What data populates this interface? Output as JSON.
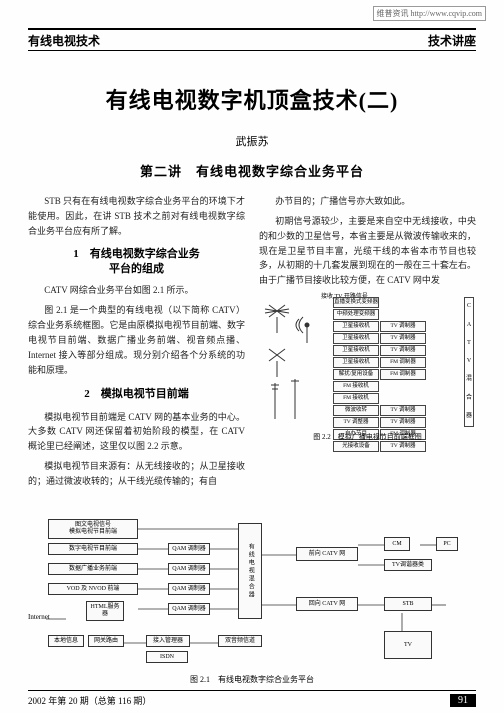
{
  "watermark": "维普资讯 http://www.cqvip.com",
  "header": {
    "left": "有线电视技术",
    "right": "技术讲座"
  },
  "title": "有线电视数字机顶盒技术(二)",
  "author": "武振苏",
  "subtitle": "第二讲　有线电视数字综合业务平台",
  "left_col": {
    "p1": "STB 只有在有线电视数字综合业务平台的环境下才能使用。因此，在讲 STB 技术之前对有线电视数字综合业务平台应有所了解。",
    "h1_line1": "1　有线电视数字综合业务",
    "h1_line2": "平台的组成",
    "p2": "CATV 网综合业务平台如图 2.1 所示。",
    "p3": "图 2.1 是一个典型的有线电视（以下简称 CATV）综合业务系统框图。它是由原模拟电视节目前端、数字电视节目前端、数据广播业务前端、视音频点播、Internet 接入等部分组成。现分别介绍各个分系统的功能和原理。",
    "h2": "2　模拟电视节目前端",
    "p4": "模拟电视节目前端是 CATV 网的基本业务的中心。大多数 CATV 网还保留着初始阶段的模型，在 CATV 概论里已经阐述，这里仅以图 2.2 示意。",
    "p5": "模拟电视节目来源有：从无线接收的；从卫星接收的；通过微波收转的；从干线光缆传输的；有自"
  },
  "right_col": {
    "p1": "办节目的；广播信号亦大致如此。",
    "p2": "初期信号源较少，主要是来自空中无线接收，中央的和少数的卫星信号，本省主要是从微波传输收来的，现在是卫星节目丰富，光缆干线的本省本市节目也较多，从初期的十几套发展到现在的一般在三十套左右。由于广播节目接收比较方便，在 CATV 网中发"
  },
  "fig22": {
    "antlabel": "接收 TV 开路信号",
    "rows": [
      [
        "直播变换式变频器",
        ""
      ],
      [
        "中频处理变频器",
        ""
      ],
      [
        "卫星接收机",
        "TV 调制器"
      ],
      [
        "卫星接收机",
        "TV 调制器"
      ],
      [
        "卫星接收机",
        "TV 调制器"
      ],
      [
        "卫星接收机",
        "FM 调制器"
      ],
      [
        "解扰/复用设备",
        "FM 调制器"
      ],
      [
        "FM 接收机",
        ""
      ],
      [
        "FM 接收机",
        ""
      ],
      [
        "微波收转",
        "TV 调制器"
      ],
      [
        "TV 调整器",
        "TV 调制器"
      ],
      [
        "自办节目",
        "FM 调制器"
      ],
      [
        "光接收设备",
        "TV 调制器"
      ]
    ],
    "sidecol_top": [
      "C",
      "A",
      "T",
      "V"
    ],
    "sidecol_bot": [
      "混",
      "合",
      "器"
    ],
    "bottom_label": "光缆干线",
    "caption": "图 2.2　模拟广播电视节目前端框图"
  },
  "fig21": {
    "boxes": {
      "b1": "图文电视信号\n模拟电视节目前端",
      "b2": "数字电视节目前端",
      "b3": "数据广播业务前端",
      "b4": "VOD 及 NVOD 前端",
      "b5": "HTML服务器",
      "b6": "本地信息",
      "b7": "网关路由",
      "qam1": "QAM 调制器",
      "qam2": "QAM 调制器",
      "qam3": "QAM 调制器",
      "qam4": "QAM 调制器",
      "combiner": "有线电视混合器",
      "access": "接入管理器",
      "bidir": "双音频信道",
      "isdn": "ISDN",
      "fwd": "前向 CATV 网",
      "rev": "回向 CATV 网",
      "cm": "CM",
      "pc": "PC",
      "tvdec": "TV调谐器类",
      "stb": "STB",
      "tv": "TV",
      "internet": "Internet"
    },
    "caption": "图 2.1　有线电视数字综合业务平台",
    "colors": {
      "line": "#333333",
      "box_bg": "#fafafa"
    }
  },
  "footer": {
    "left": "2002 年第 20 期（总第 116 期）",
    "page": "91"
  }
}
